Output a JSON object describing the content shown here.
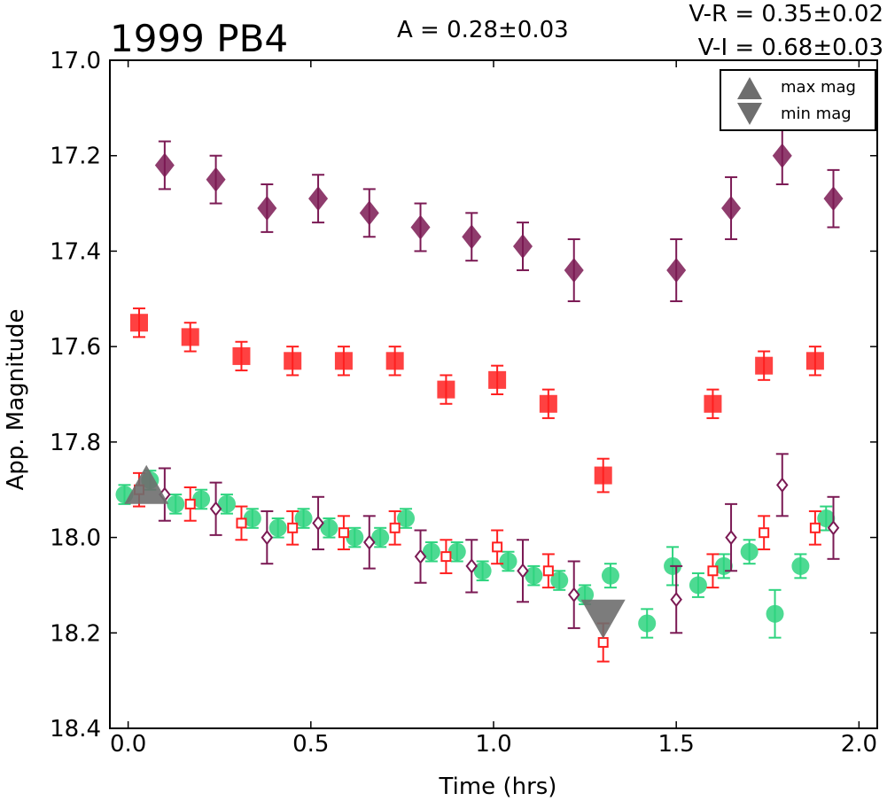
{
  "chart_data": {
    "type": "scatter",
    "title": "1999 PB4",
    "annotations": {
      "amplitude": "A  = 0.28±0.03",
      "v_r": "V-R = 0.35±0.02",
      "v_i": "V-I  = 0.68±0.03"
    },
    "xlabel": "Time (hrs)",
    "ylabel": "App. Magnitude",
    "xlim": [
      -0.05,
      2.05
    ],
    "ylim": [
      18.4,
      17.0
    ],
    "y_inverted": true,
    "xticks": [
      "0.0",
      "0.5",
      "1.0",
      "1.5",
      "2.0"
    ],
    "yticks": [
      "17.0",
      "17.2",
      "17.4",
      "17.6",
      "17.8",
      "18.0",
      "18.2",
      "18.4"
    ],
    "grid": false,
    "legend": {
      "position": "top-right",
      "entries": [
        {
          "label": "max mag",
          "marker": "triangle-up"
        },
        {
          "label": "min mag",
          "marker": "triangle-down"
        }
      ]
    },
    "series": [
      {
        "marker": "diamond-filled",
        "color": "#7b1a54",
        "points": [
          {
            "x": 0.1,
            "y": 17.22,
            "err": 0.05
          },
          {
            "x": 0.24,
            "y": 17.25,
            "err": 0.05
          },
          {
            "x": 0.38,
            "y": 17.31,
            "err": 0.05
          },
          {
            "x": 0.52,
            "y": 17.29,
            "err": 0.05
          },
          {
            "x": 0.66,
            "y": 17.32,
            "err": 0.05
          },
          {
            "x": 0.8,
            "y": 17.35,
            "err": 0.05
          },
          {
            "x": 0.94,
            "y": 17.37,
            "err": 0.05
          },
          {
            "x": 1.08,
            "y": 17.39,
            "err": 0.05
          },
          {
            "x": 1.22,
            "y": 17.44,
            "err": 0.065
          },
          {
            "x": 1.5,
            "y": 17.44,
            "err": 0.065
          },
          {
            "x": 1.65,
            "y": 17.31,
            "err": 0.065
          },
          {
            "x": 1.79,
            "y": 17.2,
            "err": 0.06
          },
          {
            "x": 1.93,
            "y": 17.29,
            "err": 0.06
          }
        ]
      },
      {
        "marker": "square-filled",
        "color": "#ff2020",
        "points": [
          {
            "x": 0.03,
            "y": 17.55,
            "err": 0.03
          },
          {
            "x": 0.17,
            "y": 17.58,
            "err": 0.03
          },
          {
            "x": 0.31,
            "y": 17.62,
            "err": 0.03
          },
          {
            "x": 0.45,
            "y": 17.63,
            "err": 0.03
          },
          {
            "x": 0.59,
            "y": 17.63,
            "err": 0.03
          },
          {
            "x": 0.73,
            "y": 17.63,
            "err": 0.03
          },
          {
            "x": 0.87,
            "y": 17.69,
            "err": 0.03
          },
          {
            "x": 1.01,
            "y": 17.67,
            "err": 0.03
          },
          {
            "x": 1.15,
            "y": 17.72,
            "err": 0.03
          },
          {
            "x": 1.3,
            "y": 17.87,
            "err": 0.035
          },
          {
            "x": 1.6,
            "y": 17.72,
            "err": 0.03
          },
          {
            "x": 1.74,
            "y": 17.64,
            "err": 0.03
          },
          {
            "x": 1.88,
            "y": 17.63,
            "err": 0.03
          }
        ]
      },
      {
        "marker": "circle-filled",
        "color": "#2ed47f",
        "points": [
          {
            "x": -0.01,
            "y": 17.91,
            "err": 0.02
          },
          {
            "x": 0.06,
            "y": 17.88,
            "err": 0.02
          },
          {
            "x": 0.13,
            "y": 17.93,
            "err": 0.02
          },
          {
            "x": 0.2,
            "y": 17.92,
            "err": 0.02
          },
          {
            "x": 0.27,
            "y": 17.93,
            "err": 0.02
          },
          {
            "x": 0.34,
            "y": 17.96,
            "err": 0.02
          },
          {
            "x": 0.41,
            "y": 17.98,
            "err": 0.02
          },
          {
            "x": 0.48,
            "y": 17.96,
            "err": 0.02
          },
          {
            "x": 0.55,
            "y": 17.98,
            "err": 0.02
          },
          {
            "x": 0.62,
            "y": 18.0,
            "err": 0.02
          },
          {
            "x": 0.69,
            "y": 18.0,
            "err": 0.02
          },
          {
            "x": 0.76,
            "y": 17.96,
            "err": 0.02
          },
          {
            "x": 0.83,
            "y": 18.03,
            "err": 0.02
          },
          {
            "x": 0.9,
            "y": 18.03,
            "err": 0.02
          },
          {
            "x": 0.97,
            "y": 18.07,
            "err": 0.02
          },
          {
            "x": 1.04,
            "y": 18.05,
            "err": 0.02
          },
          {
            "x": 1.11,
            "y": 18.08,
            "err": 0.02
          },
          {
            "x": 1.18,
            "y": 18.09,
            "err": 0.02
          },
          {
            "x": 1.25,
            "y": 18.12,
            "err": 0.02
          },
          {
            "x": 1.32,
            "y": 18.08,
            "err": 0.025
          },
          {
            "x": 1.42,
            "y": 18.18,
            "err": 0.03
          },
          {
            "x": 1.49,
            "y": 18.06,
            "err": 0.04
          },
          {
            "x": 1.56,
            "y": 18.1,
            "err": 0.025
          },
          {
            "x": 1.63,
            "y": 18.06,
            "err": 0.025
          },
          {
            "x": 1.7,
            "y": 18.03,
            "err": 0.025
          },
          {
            "x": 1.77,
            "y": 18.16,
            "err": 0.05
          },
          {
            "x": 1.84,
            "y": 18.06,
            "err": 0.025
          },
          {
            "x": 1.91,
            "y": 17.96,
            "err": 0.025
          }
        ]
      },
      {
        "marker": "square-open",
        "color": "#ff2020",
        "points": [
          {
            "x": 0.03,
            "y": 17.9,
            "err": 0.035
          },
          {
            "x": 0.17,
            "y": 17.93,
            "err": 0.035
          },
          {
            "x": 0.31,
            "y": 17.97,
            "err": 0.035
          },
          {
            "x": 0.45,
            "y": 17.98,
            "err": 0.035
          },
          {
            "x": 0.59,
            "y": 17.99,
            "err": 0.035
          },
          {
            "x": 0.73,
            "y": 17.98,
            "err": 0.035
          },
          {
            "x": 0.87,
            "y": 18.04,
            "err": 0.035
          },
          {
            "x": 1.01,
            "y": 18.02,
            "err": 0.035
          },
          {
            "x": 1.15,
            "y": 18.07,
            "err": 0.035
          },
          {
            "x": 1.3,
            "y": 18.22,
            "err": 0.04
          },
          {
            "x": 1.6,
            "y": 18.07,
            "err": 0.035
          },
          {
            "x": 1.74,
            "y": 17.99,
            "err": 0.035
          },
          {
            "x": 1.88,
            "y": 17.98,
            "err": 0.035
          }
        ]
      },
      {
        "marker": "diamond-open",
        "color": "#7b1a54",
        "points": [
          {
            "x": 0.1,
            "y": 17.91,
            "err": 0.055
          },
          {
            "x": 0.24,
            "y": 17.94,
            "err": 0.055
          },
          {
            "x": 0.38,
            "y": 18.0,
            "err": 0.055
          },
          {
            "x": 0.52,
            "y": 17.97,
            "err": 0.055
          },
          {
            "x": 0.66,
            "y": 18.01,
            "err": 0.055
          },
          {
            "x": 0.8,
            "y": 18.04,
            "err": 0.055
          },
          {
            "x": 0.94,
            "y": 18.06,
            "err": 0.055
          },
          {
            "x": 1.08,
            "y": 18.07,
            "err": 0.065
          },
          {
            "x": 1.22,
            "y": 18.12,
            "err": 0.07
          },
          {
            "x": 1.5,
            "y": 18.13,
            "err": 0.07
          },
          {
            "x": 1.65,
            "y": 18.0,
            "err": 0.07
          },
          {
            "x": 1.79,
            "y": 17.89,
            "err": 0.065
          },
          {
            "x": 1.93,
            "y": 17.98,
            "err": 0.065
          }
        ]
      },
      {
        "marker": "triangle-up",
        "color": "#6e6e6e",
        "points": [
          {
            "x": 0.05,
            "y": 17.9
          }
        ]
      },
      {
        "marker": "triangle-down",
        "color": "#6e6e6e",
        "points": [
          {
            "x": 1.3,
            "y": 18.16
          }
        ]
      }
    ]
  }
}
